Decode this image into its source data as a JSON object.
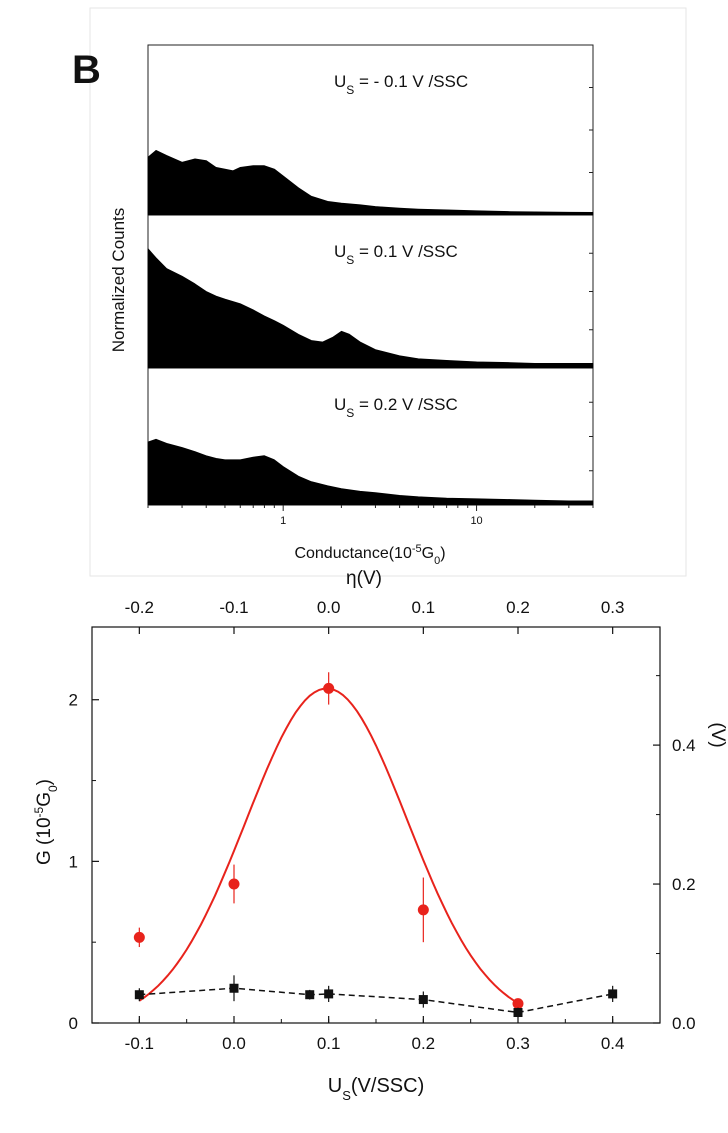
{
  "panel_label": "B",
  "chart_data": [
    {
      "type": "area",
      "ylabel": "Normalized Counts",
      "xlabel": "Conductance(10",
      "xlabel_sup": "-5",
      "xlabel_sub": "0",
      "xlabel_tail": "G",
      "xlabel_end": ")",
      "xscale": "log",
      "xlim": [
        0.2,
        40
      ],
      "xticks": [
        {
          "v": 1,
          "label": "1"
        },
        {
          "v": 10,
          "label": "10"
        }
      ],
      "panels": [
        {
          "label_main": "U",
          "label_sub": "S",
          "label_rest": " = - 0.1 V /SSC",
          "points": [
            [
              0.2,
              0.34
            ],
            [
              0.22,
              0.38
            ],
            [
              0.25,
              0.35
            ],
            [
              0.3,
              0.31
            ],
            [
              0.35,
              0.33
            ],
            [
              0.4,
              0.32
            ],
            [
              0.45,
              0.28
            ],
            [
              0.5,
              0.27
            ],
            [
              0.55,
              0.26
            ],
            [
              0.6,
              0.28
            ],
            [
              0.7,
              0.29
            ],
            [
              0.8,
              0.29
            ],
            [
              0.9,
              0.27
            ],
            [
              1.0,
              0.23
            ],
            [
              1.2,
              0.16
            ],
            [
              1.4,
              0.11
            ],
            [
              1.7,
              0.08
            ],
            [
              2.0,
              0.07
            ],
            [
              2.5,
              0.06
            ],
            [
              3,
              0.05
            ],
            [
              4,
              0.04
            ],
            [
              5,
              0.035
            ],
            [
              7,
              0.03
            ],
            [
              10,
              0.025
            ],
            [
              15,
              0.02
            ],
            [
              20,
              0.018
            ],
            [
              30,
              0.016
            ],
            [
              40,
              0.015
            ]
          ]
        },
        {
          "label_main": "U",
          "label_sub": "S",
          "label_rest": " = 0.1 V /SSC",
          "points": [
            [
              0.2,
              0.78
            ],
            [
              0.22,
              0.72
            ],
            [
              0.25,
              0.65
            ],
            [
              0.3,
              0.6
            ],
            [
              0.35,
              0.55
            ],
            [
              0.4,
              0.5
            ],
            [
              0.45,
              0.47
            ],
            [
              0.5,
              0.45
            ],
            [
              0.6,
              0.42
            ],
            [
              0.7,
              0.38
            ],
            [
              0.8,
              0.34
            ],
            [
              0.9,
              0.31
            ],
            [
              1.0,
              0.28
            ],
            [
              1.2,
              0.22
            ],
            [
              1.4,
              0.18
            ],
            [
              1.6,
              0.17
            ],
            [
              1.8,
              0.2
            ],
            [
              2.0,
              0.24
            ],
            [
              2.2,
              0.22
            ],
            [
              2.5,
              0.17
            ],
            [
              3,
              0.12
            ],
            [
              4,
              0.08
            ],
            [
              5,
              0.06
            ],
            [
              7,
              0.05
            ],
            [
              10,
              0.04
            ],
            [
              15,
              0.035
            ],
            [
              20,
              0.03
            ],
            [
              30,
              0.03
            ],
            [
              40,
              0.03
            ]
          ]
        },
        {
          "label_main": "U",
          "label_sub": "S",
          "label_rest": " = 0.2 V /SSC",
          "points": [
            [
              0.2,
              0.46
            ],
            [
              0.22,
              0.48
            ],
            [
              0.25,
              0.45
            ],
            [
              0.3,
              0.42
            ],
            [
              0.35,
              0.39
            ],
            [
              0.4,
              0.36
            ],
            [
              0.45,
              0.34
            ],
            [
              0.5,
              0.33
            ],
            [
              0.6,
              0.33
            ],
            [
              0.7,
              0.35
            ],
            [
              0.8,
              0.36
            ],
            [
              0.9,
              0.33
            ],
            [
              1.0,
              0.28
            ],
            [
              1.2,
              0.21
            ],
            [
              1.4,
              0.17
            ],
            [
              1.7,
              0.14
            ],
            [
              2.0,
              0.12
            ],
            [
              2.5,
              0.1
            ],
            [
              3,
              0.09
            ],
            [
              4,
              0.07
            ],
            [
              5,
              0.06
            ],
            [
              7,
              0.05
            ],
            [
              10,
              0.045
            ],
            [
              15,
              0.04
            ],
            [
              20,
              0.035
            ],
            [
              30,
              0.03
            ],
            [
              40,
              0.03
            ]
          ]
        }
      ]
    },
    {
      "type": "line",
      "top_axis_label": "η(V)",
      "top_ticks": [
        "-0.2",
        "-0.1",
        "0.0",
        "0.1",
        "0.2",
        "0.3"
      ],
      "xlabel_main": "U",
      "xlabel_sub": "S",
      "xlabel_rest": "(V/SSC)",
      "ylabel_main": "G (10",
      "ylabel_sup": "-5",
      "ylabel_tail": "G",
      "ylabel_sub": "0",
      "ylabel_end": ")",
      "xlim": [
        -0.15,
        0.45
      ],
      "ylim": [
        0,
        2.45
      ],
      "xticks": [
        "-0.1",
        "0.0",
        "0.1",
        "0.2",
        "0.3",
        "0.4"
      ],
      "yticks": [
        "0",
        "1",
        "2"
      ],
      "y2lim": [
        0,
        0.57
      ],
      "y2ticks": [
        "0.0",
        "0.2",
        "0.4"
      ],
      "y2label": "(V)",
      "series": [
        {
          "color": "#e8231c",
          "marker": "circle",
          "points": [
            {
              "x": -0.1,
              "y": 0.53,
              "err": 0.06
            },
            {
              "x": 0.0,
              "y": 0.86,
              "err": 0.12
            },
            {
              "x": 0.1,
              "y": 2.07,
              "err": 0.1
            },
            {
              "x": 0.2,
              "y": 0.7,
              "err": 0.2
            },
            {
              "x": 0.3,
              "y": 0.12,
              "err": 0.03
            }
          ],
          "fit": {
            "amp": 2.07,
            "center": 0.098,
            "sigma": 0.085,
            "xmin": -0.1,
            "xmax": 0.3
          }
        },
        {
          "color": "#111111",
          "marker": "square",
          "dashed": true,
          "points": [
            {
              "x": -0.1,
              "y": 0.175,
              "err": 0.04
            },
            {
              "x": 0.0,
              "y": 0.215,
              "err": 0.08
            },
            {
              "x": 0.08,
              "y": 0.175,
              "err": 0.03
            },
            {
              "x": 0.1,
              "y": 0.18,
              "err": 0.05
            },
            {
              "x": 0.2,
              "y": 0.145,
              "err": 0.05
            },
            {
              "x": 0.3,
              "y": 0.065,
              "err": 0.03
            },
            {
              "x": 0.4,
              "y": 0.18,
              "err": 0.05
            }
          ]
        }
      ]
    }
  ]
}
